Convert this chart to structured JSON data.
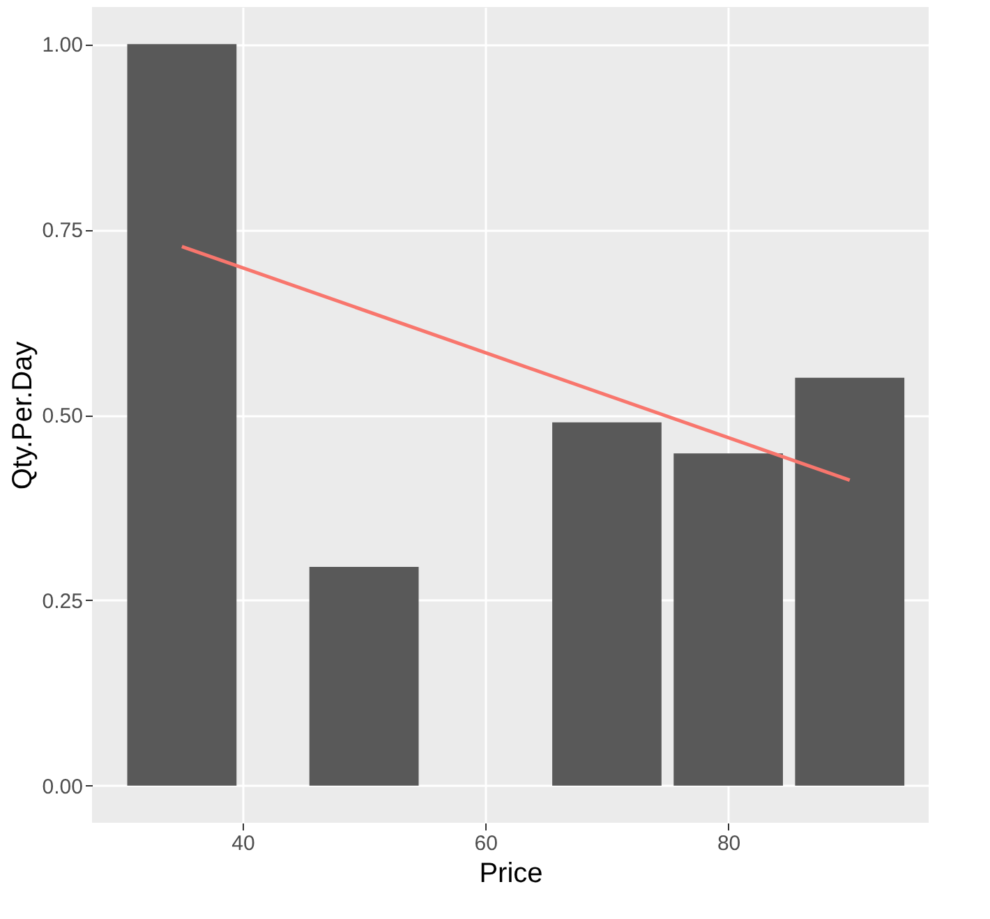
{
  "chart_data": {
    "type": "bar",
    "xlabel": "Price",
    "ylabel": "Qty.Per.Day",
    "x": [
      35,
      50,
      70,
      80,
      90
    ],
    "series": [
      {
        "color": "#595959",
        "values": [
          1.0,
          0.295,
          0.49,
          0.448,
          0.55
        ]
      },
      {
        "type": "line",
        "color": "#f8766d",
        "x": [
          35,
          90
        ],
        "values": [
          0.727,
          0.412
        ]
      }
    ],
    "xlim": [
      27.6,
      96.5
    ],
    "ylim": [
      -0.05,
      1.05
    ],
    "xticks": [
      40,
      60,
      80
    ],
    "yticks": [
      {
        "value": 0,
        "label": "0.00"
      },
      {
        "value": 0.25,
        "label": "0.25"
      },
      {
        "value": 0.5,
        "label": "0.50"
      },
      {
        "value": 0.75,
        "label": "0.75"
      },
      {
        "value": 1,
        "label": "1.00"
      }
    ],
    "grid": true
  }
}
